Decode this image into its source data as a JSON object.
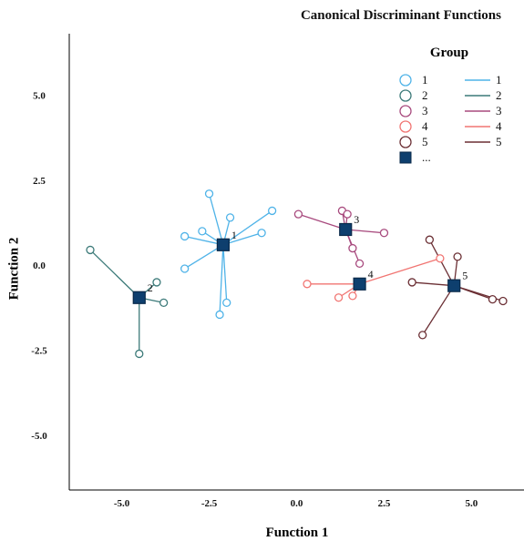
{
  "chart_data": {
    "type": "scatter",
    "title": "Canonical Discriminant Functions",
    "xlabel": "Function 1",
    "ylabel": "Function 2",
    "xlim": [
      -6.5,
      6.5
    ],
    "ylim": [
      -6.6,
      6.8
    ],
    "x_ticks": [
      "-5.0",
      "-2.5",
      "0.0",
      "2.5",
      "5.0"
    ],
    "x_tick_values": [
      -5,
      -2.5,
      0,
      2.5,
      5
    ],
    "y_ticks": [
      "5.0",
      "2.5",
      "0.0",
      "-2.5",
      "-5.0"
    ],
    "y_tick_values": [
      5,
      2.5,
      0,
      -2.5,
      -5
    ],
    "legend_title": "Group",
    "legend_position": "top-right",
    "legend_more": "...",
    "groups": [
      {
        "name": "1",
        "color": "#4fb3e8",
        "centroid": [
          -2.1,
          0.6
        ],
        "points": [
          [
            -2.5,
            2.1
          ],
          [
            -1.9,
            1.4
          ],
          [
            -2.7,
            1.0
          ],
          [
            -3.2,
            0.85
          ],
          [
            -1.0,
            0.95
          ],
          [
            -0.7,
            1.6
          ],
          [
            -3.2,
            -0.1
          ],
          [
            -2.0,
            -1.1
          ],
          [
            -2.2,
            -1.45
          ]
        ]
      },
      {
        "name": "2",
        "color": "#3c7a79",
        "centroid": [
          -4.5,
          -0.95
        ],
        "points": [
          [
            -5.9,
            0.45
          ],
          [
            -4.0,
            -0.5
          ],
          [
            -3.8,
            -1.1
          ],
          [
            -4.5,
            -2.6
          ]
        ]
      },
      {
        "name": "3",
        "color": "#a84a7e",
        "centroid": [
          1.4,
          1.05
        ],
        "points": [
          [
            1.3,
            1.6
          ],
          [
            1.45,
            1.5
          ],
          [
            0.05,
            1.5
          ],
          [
            2.5,
            0.95
          ],
          [
            1.6,
            0.5
          ],
          [
            1.8,
            0.05
          ]
        ]
      },
      {
        "name": "4",
        "color": "#f17572",
        "centroid": [
          1.8,
          -0.55
        ],
        "points": [
          [
            0.3,
            -0.55
          ],
          [
            1.2,
            -0.95
          ],
          [
            1.6,
            -0.9
          ],
          [
            4.1,
            0.2
          ]
        ]
      },
      {
        "name": "5",
        "color": "#6b2f34",
        "centroid": [
          4.5,
          -0.6
        ],
        "points": [
          [
            3.8,
            0.75
          ],
          [
            4.6,
            0.25
          ],
          [
            3.3,
            -0.5
          ],
          [
            5.6,
            -1.0
          ],
          [
            5.9,
            -1.05
          ],
          [
            3.6,
            -2.05
          ]
        ]
      }
    ]
  }
}
